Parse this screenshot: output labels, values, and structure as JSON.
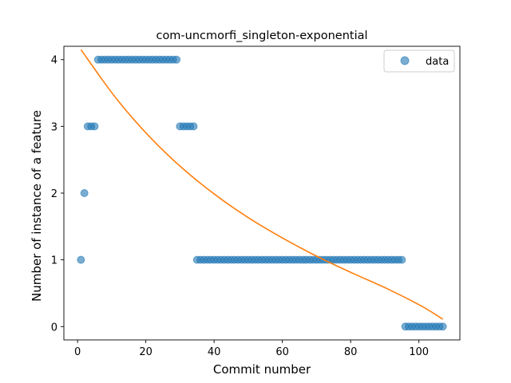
{
  "chart_data": {
    "type": "scatter",
    "title": "com-uncmorfi_singleton-exponential",
    "xlabel": "Commit number",
    "ylabel": "Number of instance of a feature",
    "xlim": [
      -4,
      112
    ],
    "ylim": [
      -0.2,
      4.2
    ],
    "xticks": [
      0,
      20,
      40,
      60,
      80,
      100
    ],
    "yticks": [
      0,
      1,
      2,
      3,
      4
    ],
    "grid": false,
    "legend_position": "top-right",
    "series": [
      {
        "name": "data",
        "kind": "scatter",
        "color": "#1f77b4",
        "points": [
          [
            1,
            1
          ],
          [
            2,
            2
          ],
          [
            3,
            3
          ],
          [
            4,
            3
          ],
          [
            5,
            3
          ],
          [
            6,
            4
          ],
          [
            7,
            4
          ],
          [
            8,
            4
          ],
          [
            9,
            4
          ],
          [
            10,
            4
          ],
          [
            11,
            4
          ],
          [
            12,
            4
          ],
          [
            13,
            4
          ],
          [
            14,
            4
          ],
          [
            15,
            4
          ],
          [
            16,
            4
          ],
          [
            17,
            4
          ],
          [
            18,
            4
          ],
          [
            19,
            4
          ],
          [
            20,
            4
          ],
          [
            21,
            4
          ],
          [
            22,
            4
          ],
          [
            23,
            4
          ],
          [
            24,
            4
          ],
          [
            25,
            4
          ],
          [
            26,
            4
          ],
          [
            27,
            4
          ],
          [
            28,
            4
          ],
          [
            29,
            4
          ],
          [
            30,
            3
          ],
          [
            31,
            3
          ],
          [
            32,
            3
          ],
          [
            33,
            3
          ],
          [
            34,
            3
          ],
          [
            35,
            1
          ],
          [
            36,
            1
          ],
          [
            37,
            1
          ],
          [
            38,
            1
          ],
          [
            39,
            1
          ],
          [
            40,
            1
          ],
          [
            41,
            1
          ],
          [
            42,
            1
          ],
          [
            43,
            1
          ],
          [
            44,
            1
          ],
          [
            45,
            1
          ],
          [
            46,
            1
          ],
          [
            47,
            1
          ],
          [
            48,
            1
          ],
          [
            49,
            1
          ],
          [
            50,
            1
          ],
          [
            51,
            1
          ],
          [
            52,
            1
          ],
          [
            53,
            1
          ],
          [
            54,
            1
          ],
          [
            55,
            1
          ],
          [
            56,
            1
          ],
          [
            57,
            1
          ],
          [
            58,
            1
          ],
          [
            59,
            1
          ],
          [
            60,
            1
          ],
          [
            61,
            1
          ],
          [
            62,
            1
          ],
          [
            63,
            1
          ],
          [
            64,
            1
          ],
          [
            65,
            1
          ],
          [
            66,
            1
          ],
          [
            67,
            1
          ],
          [
            68,
            1
          ],
          [
            69,
            1
          ],
          [
            70,
            1
          ],
          [
            71,
            1
          ],
          [
            72,
            1
          ],
          [
            73,
            1
          ],
          [
            74,
            1
          ],
          [
            75,
            1
          ],
          [
            76,
            1
          ],
          [
            77,
            1
          ],
          [
            78,
            1
          ],
          [
            79,
            1
          ],
          [
            80,
            1
          ],
          [
            81,
            1
          ],
          [
            82,
            1
          ],
          [
            83,
            1
          ],
          [
            84,
            1
          ],
          [
            85,
            1
          ],
          [
            86,
            1
          ],
          [
            87,
            1
          ],
          [
            88,
            1
          ],
          [
            89,
            1
          ],
          [
            90,
            1
          ],
          [
            91,
            1
          ],
          [
            92,
            1
          ],
          [
            93,
            1
          ],
          [
            94,
            1
          ],
          [
            95,
            1
          ],
          [
            96,
            0
          ],
          [
            97,
            0
          ],
          [
            98,
            0
          ],
          [
            99,
            0
          ],
          [
            100,
            0
          ],
          [
            101,
            0
          ],
          [
            102,
            0
          ],
          [
            103,
            0
          ],
          [
            104,
            0
          ],
          [
            105,
            0
          ],
          [
            106,
            0
          ],
          [
            107,
            0
          ]
        ]
      },
      {
        "name": "",
        "kind": "line",
        "color": "#ff7f0e",
        "x": [
          1,
          11,
          21,
          31,
          41,
          51,
          61,
          71,
          81,
          91,
          101,
          107
        ],
        "y": [
          4.15,
          3.44,
          2.85,
          2.36,
          1.95,
          1.6,
          1.3,
          1.03,
          0.79,
          0.56,
          0.3,
          0.11
        ]
      }
    ]
  }
}
